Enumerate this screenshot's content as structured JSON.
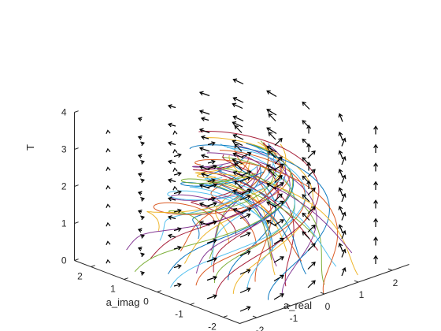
{
  "chart_data": {
    "type": "line",
    "subtype": "3d-trajectories-with-quiver",
    "title": "",
    "xlabel": "a_real",
    "ylabel": "a_imag",
    "zlabel": "T",
    "xlim": [
      -2.5,
      2.5
    ],
    "ylim": [
      -2.5,
      2.5
    ],
    "zlim": [
      0,
      4
    ],
    "x_ticks": [
      -2,
      -1,
      0,
      1,
      2
    ],
    "y_ticks": [
      -2,
      -1,
      0,
      1,
      2
    ],
    "z_ticks": [
      0,
      1,
      2,
      3,
      4
    ],
    "x_tick_labels": [
      "-2",
      "-1",
      "0",
      "1",
      "2"
    ],
    "y_tick_labels": [
      "-2",
      "-1",
      "0",
      "1",
      "2"
    ],
    "z_tick_labels": [
      "0",
      "1",
      "2",
      "3",
      "4"
    ],
    "grid": false,
    "legend": "none",
    "view": "matlab-default-3d",
    "trajectory_start_radii": [
      0.9,
      1.4,
      1.9,
      2.3
    ],
    "trajectory_start_angles_deg": [
      0,
      30,
      60,
      90,
      120,
      150,
      180,
      210,
      240,
      270,
      300,
      330
    ],
    "trajectory_T_range": [
      0,
      3.1
    ],
    "quiver_T_levels": [
      0,
      0.5,
      1,
      1.5,
      2,
      2.5,
      3,
      3.5
    ],
    "quiver_xy_grid": [
      -2,
      -1,
      0,
      1,
      2
    ],
    "series_colors": [
      "#0072BD",
      "#D95319",
      "#EDB120",
      "#7E2F8E",
      "#77AC30",
      "#4DBEEE",
      "#A2142F"
    ],
    "arrow_color": "#000000"
  }
}
